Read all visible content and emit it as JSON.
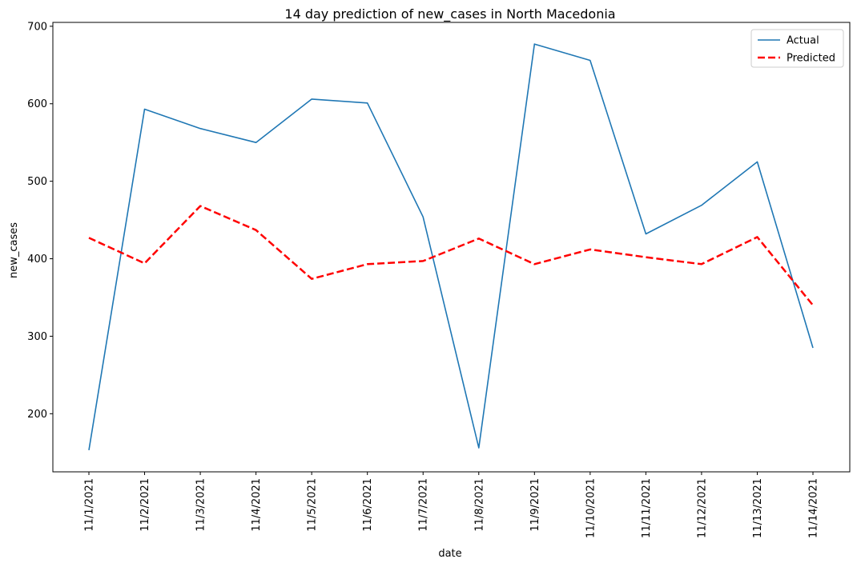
{
  "chart_data": {
    "type": "line",
    "title": "14 day prediction of new_cases in North Macedonia",
    "xlabel": "date",
    "ylabel": "new_cases",
    "categories": [
      "11/1/2021",
      "11/2/2021",
      "11/3/2021",
      "11/4/2021",
      "11/5/2021",
      "11/6/2021",
      "11/7/2021",
      "11/8/2021",
      "11/9/2021",
      "11/10/2021",
      "11/11/2021",
      "11/12/2021",
      "11/13/2021",
      "11/14/2021"
    ],
    "ylim": [
      125,
      705
    ],
    "yticks": [
      200,
      300,
      400,
      500,
      600,
      700
    ],
    "grid": false,
    "legend_position": "top-right",
    "series": [
      {
        "name": "Actual",
        "color": "#1f77b4",
        "style": "solid",
        "values": [
          153,
          593,
          568,
          550,
          606,
          601,
          454,
          156,
          677,
          656,
          432,
          469,
          525,
          285
        ]
      },
      {
        "name": "Predicted",
        "color": "#ff0000",
        "style": "dashed",
        "values": [
          427,
          394,
          468,
          437,
          374,
          393,
          397,
          426,
          393,
          412,
          402,
          393,
          428,
          340
        ]
      }
    ]
  }
}
